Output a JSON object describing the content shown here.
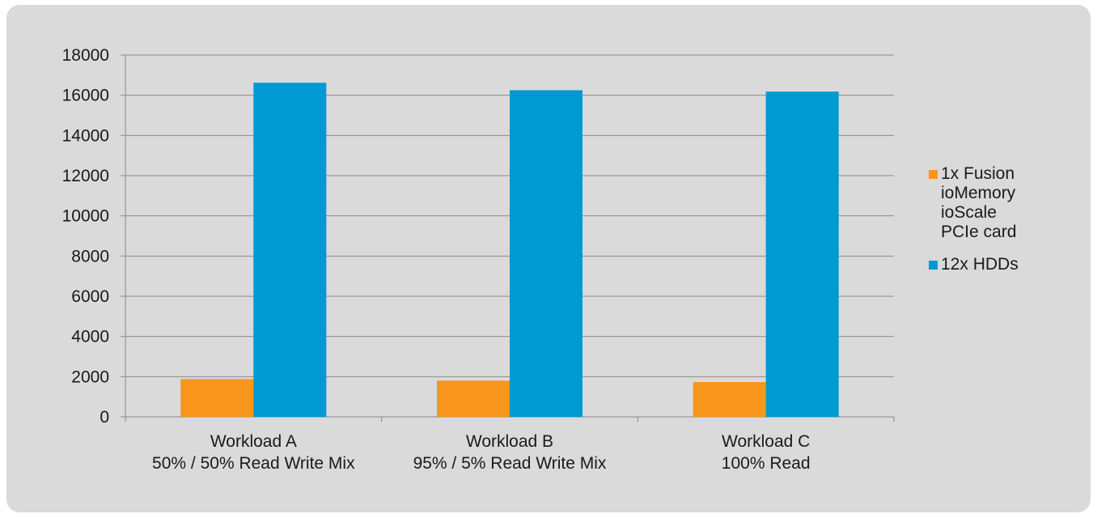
{
  "chart_data": {
    "type": "bar",
    "title": "",
    "xlabel": "",
    "ylabel": "",
    "categories": [
      [
        "Workload A",
        "50% / 50% Read Write Mix"
      ],
      [
        "Workload B",
        "95% / 5% Read Write Mix"
      ],
      [
        "Workload C",
        "100% Read"
      ]
    ],
    "series": [
      {
        "name": "1x Fusion ioMemory ioScale PCIe card",
        "name_lines": [
          "1x Fusion",
          "ioMemory",
          "ioScale",
          "PCIe card"
        ],
        "color": "#f7951d",
        "values": [
          1880,
          1800,
          1730
        ]
      },
      {
        "name": "12x HDDs",
        "name_lines": [
          "12x HDDs"
        ],
        "color": "#0099d1",
        "values": [
          16620,
          16250,
          16180
        ]
      }
    ],
    "ylim": [
      0,
      18000
    ],
    "yticks": [
      0,
      2000,
      4000,
      6000,
      8000,
      10000,
      12000,
      14000,
      16000,
      18000
    ],
    "grid": true,
    "legend_position": "right"
  }
}
